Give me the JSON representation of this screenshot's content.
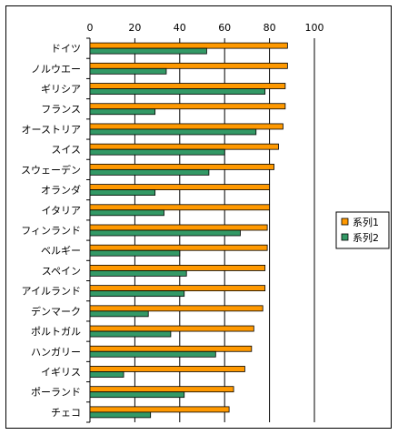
{
  "chart_data": {
    "type": "bar",
    "orientation": "horizontal",
    "categories": [
      "ドイツ",
      "ノルウエー",
      "ギリシア",
      "フランス",
      "オーストリア",
      "スイス",
      "スウェーデン",
      "オランダ",
      "イタリア",
      "フィンランド",
      "ベルギー",
      "スペイン",
      "アイルランド",
      "デンマーク",
      "ポルトガル",
      "ハンガリー",
      "イギリス",
      "ポーランド",
      "チェコ"
    ],
    "series": [
      {
        "name": "系列1",
        "color": "#FF9900",
        "values": [
          88,
          88,
          87,
          87,
          86,
          84,
          82,
          80,
          80,
          79,
          79,
          78,
          78,
          77,
          73,
          72,
          69,
          64,
          62
        ]
      },
      {
        "name": "系列2",
        "color": "#339966",
        "values": [
          52,
          34,
          78,
          29,
          74,
          60,
          53,
          29,
          33,
          67,
          40,
          43,
          42,
          26,
          36,
          56,
          15,
          42,
          27
        ]
      }
    ],
    "xlim": [
      0,
      100
    ],
    "xticks": [
      0,
      20,
      40,
      60,
      80,
      100
    ],
    "grid": "vertical",
    "legend_position": "right"
  }
}
